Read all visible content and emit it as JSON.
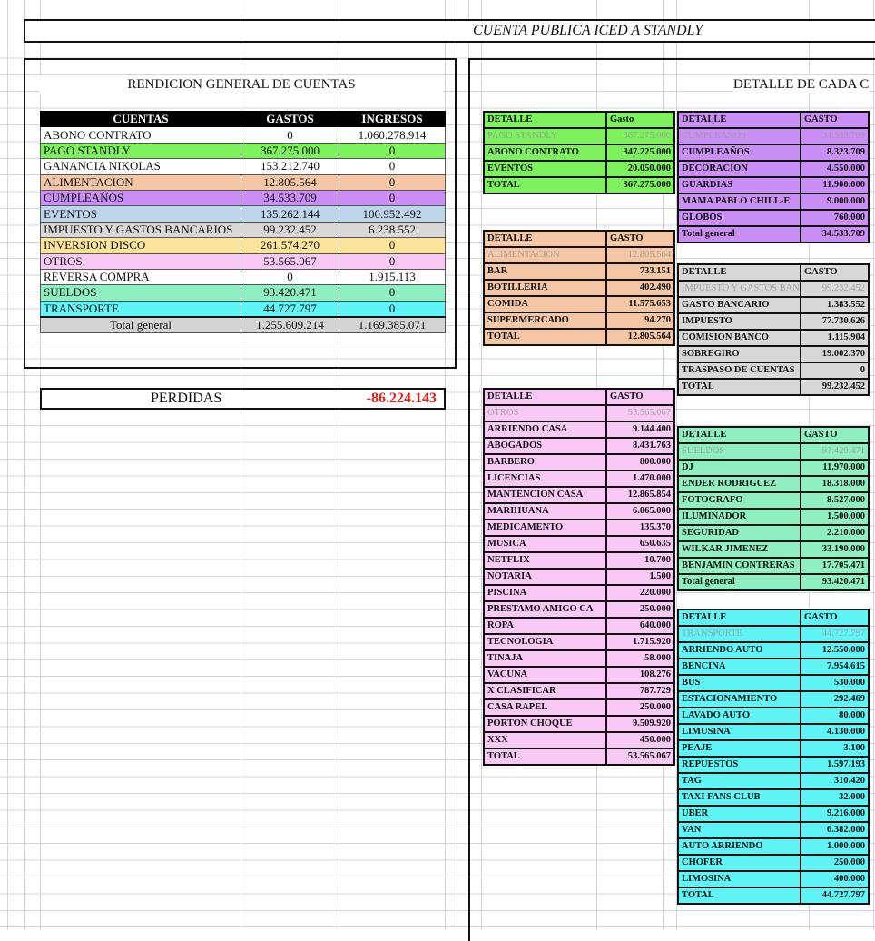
{
  "title": "CUENTA PUBLICA ICED A STANDLY",
  "left_section": {
    "title": "RENDICION GENERAL DE CUENTAS",
    "headers": [
      "CUENTAS",
      "GASTOS",
      "INGRESOS"
    ],
    "rows": [
      {
        "cuenta": "ABONO CONTRATO",
        "gastos": "0",
        "ingresos": "1.060.278.914",
        "color": "#ffffff"
      },
      {
        "cuenta": "PAGO STANDLY",
        "gastos": "367.275.000",
        "ingresos": "0",
        "color": "#7ef25e"
      },
      {
        "cuenta": "GANANCIA NIKOLAS",
        "gastos": "153.212.740",
        "ingresos": "0",
        "color": "#ffffff"
      },
      {
        "cuenta": "ALIMENTACION",
        "gastos": "12.805.564",
        "ingresos": "0",
        "color": "#f5c6a4"
      },
      {
        "cuenta": "CUMPLEAÑOS",
        "gastos": "34.533.709",
        "ingresos": "0",
        "color": "#c98ff6"
      },
      {
        "cuenta": "EVENTOS",
        "gastos": "135.262.144",
        "ingresos": "100.952.492",
        "color": "#bcd5ea"
      },
      {
        "cuenta": "IMPUESTO Y GASTOS BANCARIOS",
        "gastos": "99.232.452",
        "ingresos": "6.238.552",
        "color": "#d8d8d8"
      },
      {
        "cuenta": "INVERSION DISCO",
        "gastos": "261.574.270",
        "ingresos": "0",
        "color": "#fde49c"
      },
      {
        "cuenta": "OTROS",
        "gastos": "53.565.067",
        "ingresos": "0",
        "color": "#f8c9f4"
      },
      {
        "cuenta": "REVERSA COMPRA",
        "gastos": "0",
        "ingresos": "1.915.113",
        "color": "#ffffff"
      },
      {
        "cuenta": "SUELDOS",
        "gastos": "93.420.471",
        "ingresos": "0",
        "color": "#8ef0c0"
      },
      {
        "cuenta": "TRANSPORTE",
        "gastos": "44.727.797",
        "ingresos": "0",
        "color": "#5ff4f6"
      }
    ],
    "total": {
      "label": "Total general",
      "gastos": "1.255.609.214",
      "ingresos": "1.169.385.071"
    },
    "perdidas": {
      "label": "PERDIDAS",
      "value": "-86.224.143",
      "color": "#e0201b"
    }
  },
  "right_section": {
    "title": "DETALLE DE CADA C",
    "tables": [
      {
        "id": "pago",
        "color": "#7ef25e",
        "header": [
          "DETALLE",
          "Gasto"
        ],
        "sub": [
          "PAGO STANDLY",
          "367.275.000"
        ],
        "rows": [
          [
            "ABONO CONTRATO",
            "347.225.000"
          ],
          [
            "EVENTOS",
            "20.050.000"
          ]
        ],
        "total": [
          "TOTAL",
          "367.275.000"
        ]
      },
      {
        "id": "alimentacion",
        "color": "#f5c6a4",
        "header": [
          "DETALLE",
          "GASTO"
        ],
        "sub": [
          "ALIMENTACION",
          "12.805.564"
        ],
        "rows": [
          [
            "BAR",
            "733.151"
          ],
          [
            "BOTILLERIA",
            "402.490"
          ],
          [
            "COMIDA",
            "11.575.653"
          ],
          [
            "SUPERMERCADO",
            "94.270"
          ]
        ],
        "total": [
          "TOTAL",
          "12.805.564"
        ]
      },
      {
        "id": "otros",
        "color": "#f8c9f4",
        "header": [
          "DETALLE",
          "GASTO"
        ],
        "sub": [
          "OTROS",
          "53.565.067"
        ],
        "rows": [
          [
            "ARRIENDO CASA",
            "9.144.400"
          ],
          [
            "ABOGADOS",
            "8.431.763"
          ],
          [
            "BARBERO",
            "800.000"
          ],
          [
            "LICENCIAS",
            "1.470.000"
          ],
          [
            "MANTENCION CASA",
            "12.865.854"
          ],
          [
            "MARIHUANA",
            "6.065.000"
          ],
          [
            "MEDICAMENTO",
            "135.370"
          ],
          [
            "MUSICA",
            "650.635"
          ],
          [
            "NETFLIX",
            "10.700"
          ],
          [
            "NOTARIA",
            "1.500"
          ],
          [
            "PISCINA",
            "220.000"
          ],
          [
            "PRESTAMO AMIGO CA",
            "250.000"
          ],
          [
            "ROPA",
            "640.000"
          ],
          [
            "TECNOLOGIA",
            "1.715.920"
          ],
          [
            "TINAJA",
            "58.000"
          ],
          [
            "VACUNA",
            "108.276"
          ],
          [
            "X CLASIFICAR",
            "787.729"
          ],
          [
            "CASA RAPEL",
            "250.000"
          ],
          [
            "PORTON CHOQUE",
            "9.509.920"
          ],
          [
            "XXX",
            "450.000"
          ]
        ],
        "total": [
          "TOTAL",
          "53.565.067"
        ]
      },
      {
        "id": "cumpleanos",
        "color": "#c98ff6",
        "header": [
          "DETALLE",
          "GASTO"
        ],
        "sub": [
          "CUMPLEAÑOS",
          "34.533.709"
        ],
        "rows": [
          [
            "CUMPLEAÑOS",
            "8.323.709"
          ],
          [
            "DECORACION",
            "4.550.000"
          ],
          [
            "GUARDIAS",
            "11.900.000"
          ],
          [
            "MAMA PABLO CHILL-E",
            "9.000.000"
          ],
          [
            "GLOBOS",
            "760.000"
          ]
        ],
        "total": [
          "Total general",
          "34.533.709"
        ]
      },
      {
        "id": "impuestos",
        "color": "#d8d8d8",
        "header": [
          "DETALLE",
          "GASTO"
        ],
        "sub": [
          "IMPUESTO Y GASTOS BAN",
          "99.232.452"
        ],
        "rows": [
          [
            "GASTO BANCARIO",
            "1.383.552"
          ],
          [
            "IMPUESTO",
            "77.730.626"
          ],
          [
            "COMISION BANCO",
            "1.115.904"
          ],
          [
            "SOBREGIRO",
            "19.002.370"
          ],
          [
            "TRASPASO DE CUENTAS",
            "0"
          ]
        ],
        "total": [
          "TOTAL",
          "99.232.452"
        ]
      },
      {
        "id": "sueldos",
        "color": "#8ef0c0",
        "header": [
          "DETALLE",
          "GASTO"
        ],
        "sub": [
          "SUELDOS",
          "93.420.471"
        ],
        "rows": [
          [
            "DJ",
            "11.970.000"
          ],
          [
            "ENDER RODRIGUEZ",
            "18.318.000"
          ],
          [
            "FOTOGRAFO",
            "8.527.000"
          ],
          [
            "ILUMINADOR",
            "1.500.000"
          ],
          [
            "SEGURIDAD",
            "2.210.000"
          ],
          [
            "WILKAR JIMENEZ",
            "33.190.000"
          ],
          [
            "BENJAMIN CONTRERAS",
            "17.705.471"
          ]
        ],
        "total": [
          "Total general",
          "93.420.471"
        ]
      },
      {
        "id": "transporte",
        "color": "#5ff4f6",
        "header": [
          "DETALLE",
          "GASTO"
        ],
        "sub": [
          "TRANSPORTE",
          "44.727.797"
        ],
        "rows": [
          [
            "ARRIENDO AUTO",
            "12.550.000"
          ],
          [
            "BENCINA",
            "7.954.615"
          ],
          [
            "BUS",
            "530.000"
          ],
          [
            "ESTACIONAMIENTO",
            "292.469"
          ],
          [
            "LAVADO AUTO",
            "80.000"
          ],
          [
            "LIMUSINA",
            "4.130.000"
          ],
          [
            "PEAJE",
            "3.100"
          ],
          [
            "REPUESTOS",
            "1.597.193"
          ],
          [
            "TAG",
            "310.420"
          ],
          [
            "TAXI FANS CLUB",
            "32.000"
          ],
          [
            "UBER",
            "9.216.000"
          ],
          [
            "VAN",
            "6.382.000"
          ],
          [
            "AUTO ARRIENDO",
            "1.000.000"
          ],
          [
            "CHOFER",
            "250.000"
          ],
          [
            "LIMOSINA",
            "400.000"
          ]
        ],
        "total": [
          "TOTAL",
          "44.727.797"
        ]
      }
    ]
  }
}
